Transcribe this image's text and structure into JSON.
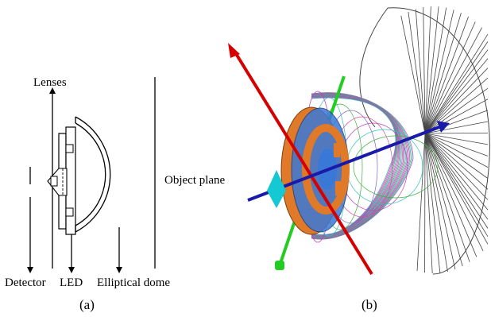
{
  "panel_a": {
    "caption": "(a)",
    "labels": {
      "lenses": "Lenses",
      "detector": "Detector",
      "led": "LED",
      "elliptical_dome": "Elliptical dome"
    }
  },
  "panel_b": {
    "caption": "(b)",
    "labels": {
      "object_plane": "Object plane"
    }
  },
  "colors": {
    "line": "#000000",
    "red_axis": "#d40000",
    "green_axis": "#22cc22",
    "blue_axis": "#1a1aa8",
    "cyan_marker": "#14c8d4",
    "disk_orange": "#e07a28",
    "disk_blue": "#3a78d8",
    "wire_magenta": "#c040c0",
    "wire_cyan": "#30c0c0",
    "wire_green": "#40b040",
    "cone_gray": "#555555"
  }
}
